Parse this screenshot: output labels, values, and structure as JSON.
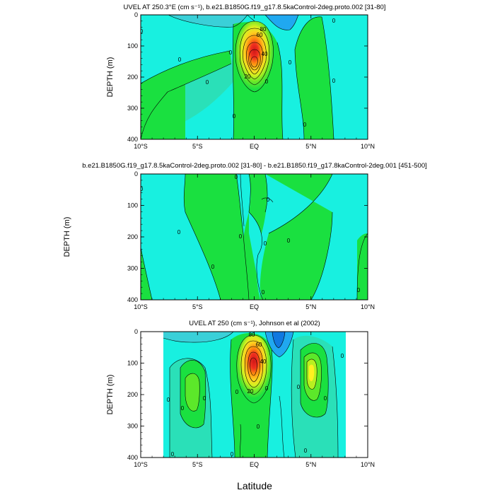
{
  "figure": {
    "shared_xlabel": "Latitude"
  },
  "colors": {
    "cyan": "#18f0e0",
    "cyan_light": "#3ad0d8",
    "teal": "#2ae0b8",
    "green": "#1ae040",
    "green_light": "#5ce82a",
    "yellow_green": "#b8f020",
    "yellow": "#fff020",
    "orange": "#ff9a10",
    "red": "#f02020",
    "blue_deep": "#1078e0",
    "blue": "#20a8f0",
    "panel_bg": "#ffffff"
  },
  "chart_data": [
    {
      "type": "contour",
      "title": "UVEL AT 250.3°E (cm s⁻¹), b.e21.B1850G.f19_g17.8.5kaControl-2deg.proto.002 [31-80]",
      "xlabel": "",
      "ylabel": "DEPTH (m)",
      "xlim": [
        -10,
        10
      ],
      "ylim": [
        400,
        0
      ],
      "xticks": [
        "10°S",
        "5°S",
        "EQ",
        "5°N",
        "10°N"
      ],
      "yticks": [
        "0",
        "100",
        "200",
        "300",
        "400"
      ],
      "contour_interval": 10,
      "core": {
        "lat": 0,
        "depth": 95,
        "max_value": 90
      },
      "contour_labels": [
        "0",
        "0",
        "0",
        "0",
        "0",
        "0",
        "0",
        "0",
        "0",
        "0",
        "20",
        "40",
        "60",
        "80"
      ]
    },
    {
      "type": "contour",
      "title": "b.e21.B1850G.f19_g17.8.5kaControl-2deg.proto.002 [31-80] - b.e21.B1850.f19_g17.8kaControl-2deg.001 [451-500]",
      "xlabel": "",
      "ylabel": "DEPTH (m)",
      "xlim": [
        -10,
        10
      ],
      "ylim": [
        400,
        0
      ],
      "xticks": [
        "10°S",
        "5°S",
        "EQ",
        "5°N",
        "10°N"
      ],
      "yticks": [
        "0",
        "100",
        "200",
        "300",
        "400"
      ],
      "contour_interval": 10,
      "contour_labels": [
        "0",
        "0",
        "0",
        "0",
        "0",
        "0",
        "0",
        "0",
        "0",
        "0"
      ]
    },
    {
      "type": "contour",
      "title": "UVEL AT 250 (cm s⁻¹), Johnson et al (2002)",
      "xlabel": "Latitude",
      "ylabel": "DEPTH (m)",
      "xlim": [
        -10,
        10
      ],
      "ylim": [
        400,
        0
      ],
      "xticks": [
        "10°S",
        "5°S",
        "EQ",
        "5°N",
        "10°N"
      ],
      "yticks": [
        "0",
        "100",
        "200",
        "300",
        "400"
      ],
      "data_lat_range": [
        -8,
        8
      ],
      "contour_interval": 10,
      "core": {
        "lat": -0.1,
        "depth": 80,
        "max_value": 90
      },
      "contour_labels": [
        "0",
        "0",
        "0",
        "0",
        "0",
        "0",
        "0",
        "0",
        "0",
        "0",
        "0",
        "0",
        "20",
        "40",
        "60",
        "80"
      ]
    }
  ]
}
